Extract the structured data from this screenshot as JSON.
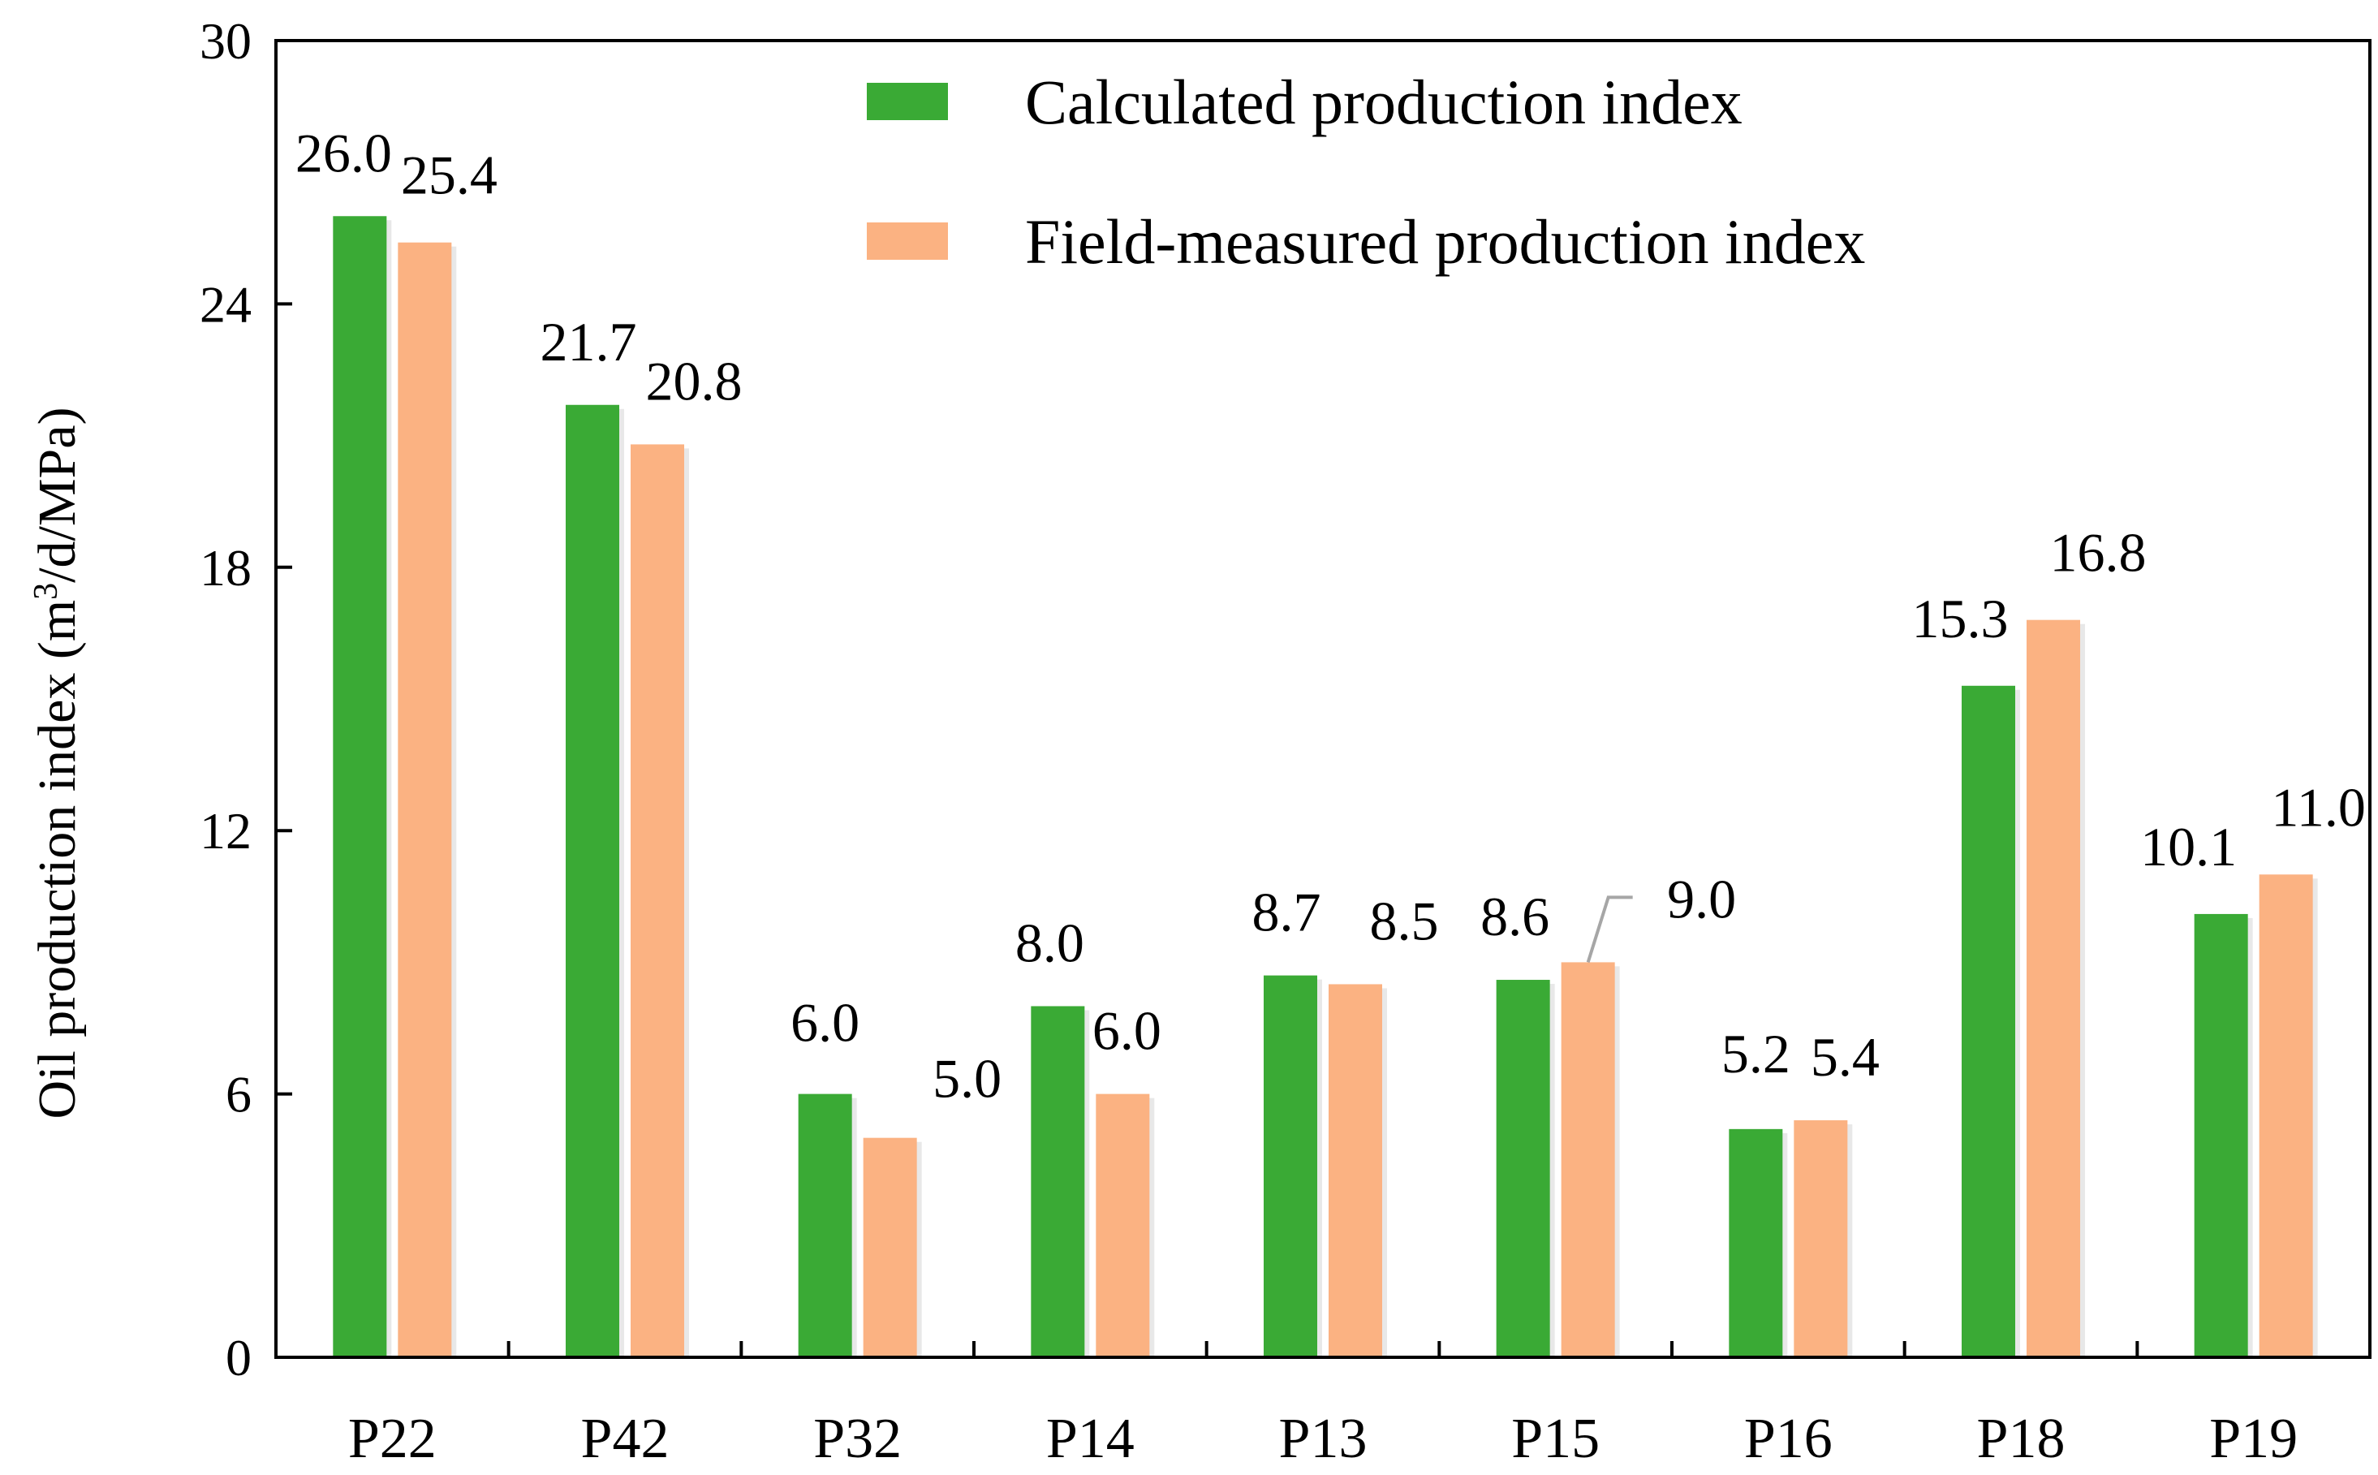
{
  "chart_data": {
    "type": "bar",
    "title": "",
    "xlabel": "",
    "ylabel": "Oil production index (m³/d/MPa)",
    "ylabel_parts": {
      "before": "Oil production index (m",
      "superscript": "3",
      "after": "/d/MPa)"
    },
    "ylim": [
      0,
      30
    ],
    "yticks": [
      "0",
      "6",
      "12",
      "18",
      "24",
      "30"
    ],
    "categories": [
      "P22",
      "P42",
      "P32",
      "P14",
      "P13",
      "P15",
      "P16",
      "P18",
      "P19"
    ],
    "series": [
      {
        "name": "Calculated production index",
        "color": "#3aaa35",
        "values": [
          26.0,
          21.7,
          6.0,
          8.0,
          8.7,
          8.6,
          5.2,
          15.3,
          10.1
        ],
        "labels": [
          "26.0",
          "21.7",
          "6.0",
          "8.0",
          "8.7",
          "8.6",
          "5.2",
          "15.3",
          "10.1"
        ]
      },
      {
        "name": "Field-measured production index",
        "color": "#fbb282",
        "values": [
          25.4,
          20.8,
          5.0,
          6.0,
          8.5,
          9.0,
          5.4,
          16.8,
          11.0
        ],
        "labels": [
          "25.4",
          "20.8",
          "5.0",
          "6.0",
          "8.5",
          "9.0",
          "5.4",
          "16.8",
          "11.0"
        ]
      }
    ],
    "legend": "top-center",
    "grid": false
  }
}
